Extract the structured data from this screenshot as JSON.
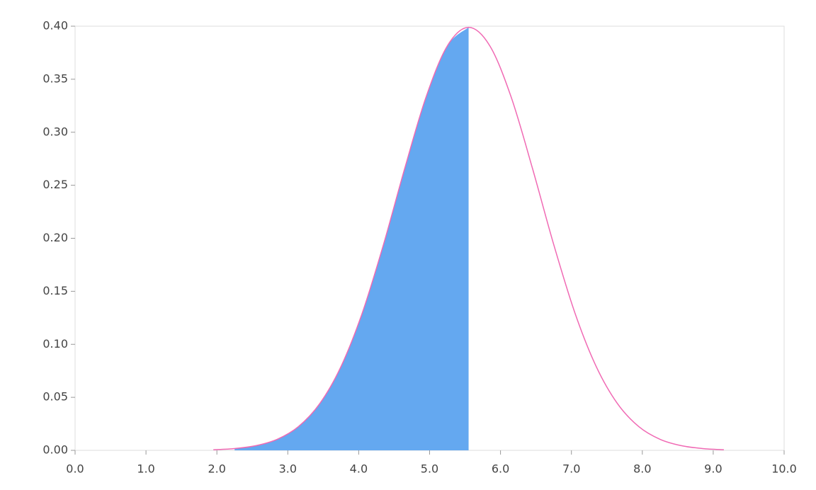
{
  "chart_data": {
    "type": "line",
    "x": [
      1.95,
      2.25,
      2.55,
      2.85,
      3.15,
      3.45,
      3.75,
      4.05,
      4.35,
      4.65,
      4.95,
      5.25,
      5.55,
      5.85,
      6.15,
      6.45,
      6.75,
      7.05,
      7.35,
      7.65,
      7.95,
      8.25,
      8.55,
      8.85,
      9.15
    ],
    "series": [
      {
        "color": "#f06ab4",
        "fill": "#64a8f0",
        "values": [
          0.0006,
          0.0017,
          0.0044,
          0.0104,
          0.0224,
          0.044,
          0.079,
          0.1295,
          0.1942,
          0.2661,
          0.3332,
          0.3814,
          0.3989,
          0.3814,
          0.3332,
          0.2661,
          0.1942,
          0.1295,
          0.079,
          0.044,
          0.0224,
          0.0104,
          0.0044,
          0.0017,
          0.0006
        ]
      }
    ],
    "shaded_range": [
      2.25,
      5.55
    ],
    "xlim": [
      0,
      10
    ],
    "xticks": [
      {
        "value": 0,
        "label": "0.0"
      },
      {
        "value": 1,
        "label": "1.0"
      },
      {
        "value": 2,
        "label": "2.0"
      },
      {
        "value": 3,
        "label": "3.0"
      },
      {
        "value": 4,
        "label": "4.0"
      },
      {
        "value": 5,
        "label": "5.0"
      },
      {
        "value": 6,
        "label": "6.0"
      },
      {
        "value": 7,
        "label": "7.0"
      },
      {
        "value": 8,
        "label": "8.0"
      },
      {
        "value": 9,
        "label": "9.0"
      },
      {
        "value": 10,
        "label": "10.0"
      }
    ],
    "ylim": [
      0,
      0.4
    ],
    "yticks": [
      {
        "value": 0,
        "label": "0.00"
      },
      {
        "value": 0.05,
        "label": "0.05"
      },
      {
        "value": 0.1,
        "label": "0.10"
      },
      {
        "value": 0.15,
        "label": "0.15"
      },
      {
        "value": 0.2,
        "label": "0.20"
      },
      {
        "value": 0.25,
        "label": "0.25"
      },
      {
        "value": 0.3,
        "label": "0.30"
      },
      {
        "value": 0.35,
        "label": "0.35"
      },
      {
        "value": 0.4,
        "label": "0.40"
      }
    ]
  }
}
